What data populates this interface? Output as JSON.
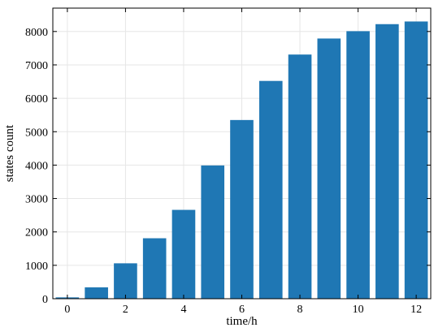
{
  "chart_data": {
    "type": "bar",
    "xlabel": "time/h",
    "ylabel": "states count",
    "x": [
      0,
      1,
      2,
      3,
      4,
      5,
      6,
      7,
      8,
      9,
      10,
      11,
      12
    ],
    "values": [
      40,
      340,
      1060,
      1810,
      2660,
      3990,
      5350,
      6520,
      7310,
      7790,
      8010,
      8220,
      8300
    ],
    "xlim": [
      -0.5,
      12.5
    ],
    "ylim": [
      0,
      8700
    ],
    "xticks": [
      0,
      2,
      4,
      6,
      8,
      10,
      12
    ],
    "yticks": [
      0,
      1000,
      2000,
      3000,
      4000,
      5000,
      6000,
      7000,
      8000
    ],
    "grid": true,
    "bar_color": "#1f77b4"
  }
}
